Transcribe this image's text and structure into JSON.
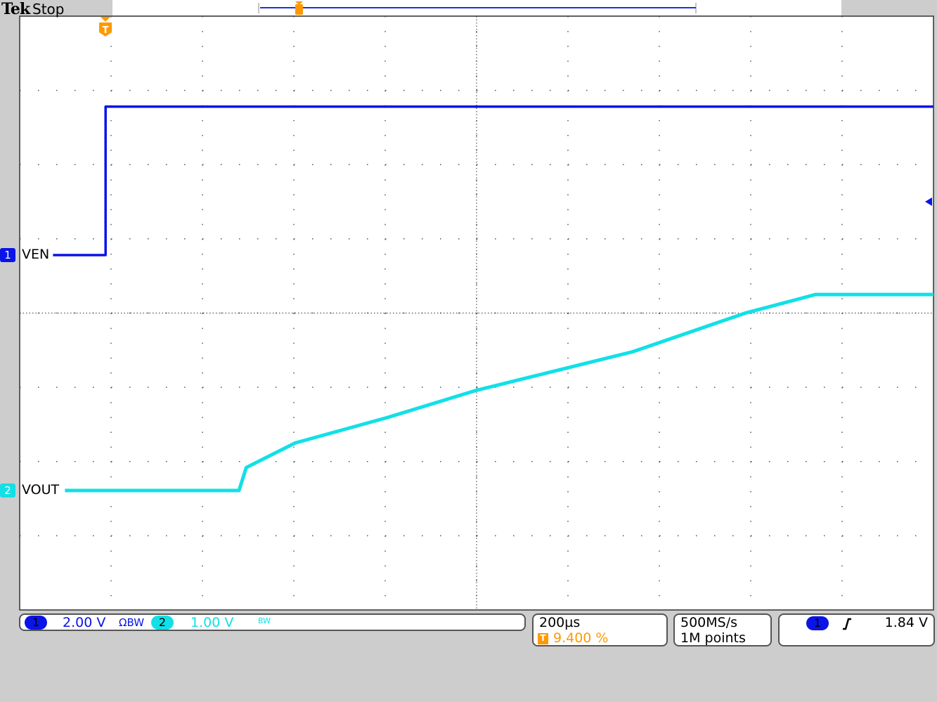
{
  "header": {
    "brand": "Tek",
    "status": "Stop"
  },
  "colors": {
    "ch1": "#0a14e6",
    "ch2": "#12e0e6",
    "trigger": "#ff9900",
    "grid": "#555555",
    "background": "#cdcdcd"
  },
  "channels": [
    {
      "number": "1",
      "label": "VEN",
      "scale": "2.00 V",
      "bw_symbol": "ΩBW",
      "color": "#0a14e6"
    },
    {
      "number": "2",
      "label": "VOUT",
      "scale": "1.00 V",
      "bw_symbol": "BW",
      "color": "#12e0e6"
    }
  ],
  "timebase": {
    "scale": "200µs",
    "trigger_pos_icon": "T",
    "trigger_position": "9.400 %"
  },
  "acquisition": {
    "sample_rate": "500MS/s",
    "record_length": "1M points"
  },
  "trigger": {
    "source": "1",
    "slope_icon": "rising-edge-icon",
    "level": "1.84 V"
  },
  "chart_data": {
    "type": "line",
    "grid": true,
    "divisions": {
      "x": 10,
      "y": 8
    },
    "x_units": "µs relative to trigger",
    "xlim": [
      -188,
      1812
    ],
    "series": [
      {
        "name": "VEN",
        "channel": 1,
        "volts_per_div": 2.0,
        "x": [
          -115,
          0,
          0,
          1812
        ],
        "y": [
          0,
          0,
          4.0,
          4.0
        ]
      },
      {
        "name": "VOUT",
        "channel": 2,
        "volts_per_div": 1.0,
        "x": [
          -89,
          292,
          308,
          415,
          615,
          812,
          1154,
          1400,
          1554,
          1812
        ],
        "y": [
          0,
          0,
          0.31,
          0.64,
          0.98,
          1.35,
          1.87,
          2.39,
          2.64,
          2.64
        ]
      }
    ]
  }
}
